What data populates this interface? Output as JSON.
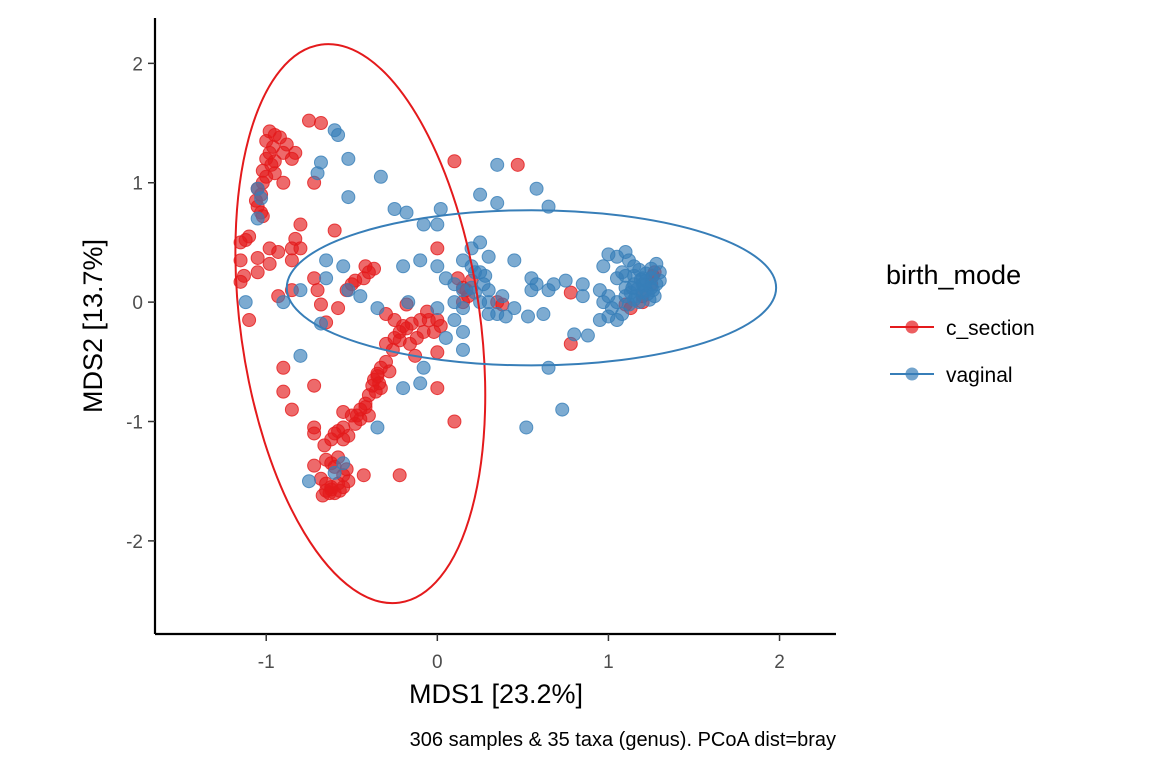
{
  "chart_data": {
    "type": "scatter",
    "xlabel": "MDS1 [23.2%]",
    "ylabel": "MDS2 [13.7%]",
    "caption": "306 samples & 35 taxa (genus). PCoA dist=bray",
    "xlim": [
      -1.65,
      2.33
    ],
    "ylim": [
      -2.78,
      2.38
    ],
    "x_ticks": [
      -1,
      0,
      1,
      2
    ],
    "y_ticks": [
      -2,
      -1,
      0,
      1,
      2
    ],
    "x_tick_labels": [
      "-1",
      "0",
      "1",
      "2"
    ],
    "y_tick_labels": [
      "-2",
      "-1",
      "0",
      "1",
      "2"
    ],
    "grid": false,
    "legend": {
      "title": "birth_mode",
      "placement": "right"
    },
    "series": [
      {
        "name": "c_section",
        "color": "#E41A1C",
        "ellipse": {
          "cx": -0.45,
          "cy": -0.18,
          "rx": 0.7,
          "ry": 2.36,
          "angle_deg": -8
        },
        "points": [
          [
            -0.98,
            1.43
          ],
          [
            -0.95,
            1.4
          ],
          [
            -1.0,
            1.35
          ],
          [
            -0.92,
            1.38
          ],
          [
            -0.96,
            1.3
          ],
          [
            -0.88,
            1.32
          ],
          [
            -0.9,
            1.25
          ],
          [
            -0.98,
            1.25
          ],
          [
            -0.75,
            1.52
          ],
          [
            -0.68,
            1.5
          ],
          [
            -0.83,
            1.25
          ],
          [
            -0.85,
            1.2
          ],
          [
            -1.0,
            1.2
          ],
          [
            -0.97,
            1.15
          ],
          [
            -1.02,
            1.1
          ],
          [
            -0.95,
            1.08
          ],
          [
            -1.0,
            1.05
          ],
          [
            -1.02,
            1.0
          ],
          [
            -0.9,
            1.0
          ],
          [
            -0.72,
            1.0
          ],
          [
            -1.05,
            0.95
          ],
          [
            -1.03,
            0.9
          ],
          [
            -1.05,
            0.8
          ],
          [
            -1.03,
            0.75
          ],
          [
            -1.02,
            0.72
          ],
          [
            -1.1,
            0.55
          ],
          [
            -1.12,
            0.52
          ],
          [
            -1.15,
            0.5
          ],
          [
            -0.98,
            0.45
          ],
          [
            -0.83,
            0.53
          ],
          [
            -0.85,
            0.45
          ],
          [
            -0.8,
            0.45
          ],
          [
            -1.05,
            0.37
          ],
          [
            -0.93,
            0.42
          ],
          [
            -0.85,
            0.35
          ],
          [
            -1.15,
            0.35
          ],
          [
            -0.98,
            0.32
          ],
          [
            -1.05,
            0.25
          ],
          [
            -1.13,
            0.22
          ],
          [
            -1.15,
            0.17
          ],
          [
            -0.72,
            0.2
          ],
          [
            -0.6,
            0.6
          ],
          [
            -0.42,
            0.3
          ],
          [
            -0.4,
            0.25
          ],
          [
            -0.43,
            0.2
          ],
          [
            -0.48,
            0.18
          ],
          [
            -0.5,
            0.15
          ],
          [
            -0.85,
            0.1
          ],
          [
            -0.93,
            0.05
          ],
          [
            -0.7,
            0.1
          ],
          [
            -0.68,
            -0.02
          ],
          [
            -1.1,
            -0.15
          ],
          [
            -0.65,
            -0.17
          ],
          [
            -0.3,
            -0.1
          ],
          [
            -0.25,
            -0.15
          ],
          [
            -0.2,
            -0.2
          ],
          [
            -0.18,
            -0.22
          ],
          [
            -0.22,
            -0.25
          ],
          [
            -0.15,
            -0.18
          ],
          [
            -0.1,
            -0.15
          ],
          [
            -0.05,
            -0.15
          ],
          [
            0.0,
            -0.15
          ],
          [
            0.02,
            -0.2
          ],
          [
            -0.02,
            -0.25
          ],
          [
            -0.08,
            -0.25
          ],
          [
            -0.12,
            -0.3
          ],
          [
            -0.16,
            -0.35
          ],
          [
            -0.25,
            -0.3
          ],
          [
            -0.3,
            -0.35
          ],
          [
            -0.13,
            -0.45
          ],
          [
            -0.3,
            -0.5
          ],
          [
            -0.33,
            -0.55
          ],
          [
            -0.28,
            -0.58
          ],
          [
            -0.35,
            -0.6
          ],
          [
            -0.37,
            -0.65
          ],
          [
            -0.38,
            -0.7
          ],
          [
            -0.33,
            -0.72
          ],
          [
            -0.36,
            -0.75
          ],
          [
            -0.4,
            -0.78
          ],
          [
            -0.42,
            -0.85
          ],
          [
            -0.45,
            -0.9
          ],
          [
            -0.47,
            -0.95
          ],
          [
            -0.5,
            -0.95
          ],
          [
            -0.55,
            -0.92
          ],
          [
            -0.4,
            -0.95
          ],
          [
            -0.45,
            -0.98
          ],
          [
            -0.55,
            -1.05
          ],
          [
            -0.58,
            -1.08
          ],
          [
            -0.52,
            -1.12
          ],
          [
            -0.55,
            -1.15
          ],
          [
            -0.6,
            -1.1
          ],
          [
            -0.62,
            -1.15
          ],
          [
            -0.72,
            -1.05
          ],
          [
            -0.72,
            -1.1
          ],
          [
            -0.85,
            -0.9
          ],
          [
            -0.9,
            -0.75
          ],
          [
            -0.9,
            -0.55
          ],
          [
            -0.72,
            -0.7
          ],
          [
            -0.58,
            -1.3
          ],
          [
            -0.62,
            -1.35
          ],
          [
            -0.65,
            -1.32
          ],
          [
            -0.6,
            -1.38
          ],
          [
            -0.72,
            -1.37
          ],
          [
            -0.68,
            -1.48
          ],
          [
            -0.65,
            -1.52
          ],
          [
            -0.62,
            -1.55
          ],
          [
            -0.58,
            -1.52
          ],
          [
            -0.55,
            -1.55
          ],
          [
            -0.52,
            -1.5
          ],
          [
            -0.57,
            -1.58
          ],
          [
            -0.6,
            -1.6
          ],
          [
            -0.63,
            -1.6
          ],
          [
            -0.65,
            -1.58
          ],
          [
            -0.67,
            -1.62
          ],
          [
            -0.62,
            -1.57
          ],
          [
            -0.55,
            -1.45
          ],
          [
            -0.53,
            -1.4
          ],
          [
            -0.43,
            -1.45
          ],
          [
            -0.22,
            -1.45
          ],
          [
            0.1,
            -1.0
          ],
          [
            0.0,
            -0.72
          ],
          [
            0.0,
            -0.42
          ],
          [
            0.0,
            0.45
          ],
          [
            0.1,
            1.18
          ],
          [
            0.47,
            1.15
          ],
          [
            0.12,
            0.2
          ],
          [
            0.15,
            0.12
          ],
          [
            0.17,
            0.1
          ],
          [
            0.18,
            0.05
          ],
          [
            0.15,
            0.0
          ],
          [
            0.35,
            0.0
          ],
          [
            0.38,
            -0.02
          ],
          [
            0.78,
            0.08
          ],
          [
            0.78,
            -0.35
          ],
          [
            1.1,
            -0.02
          ],
          [
            1.13,
            -0.05
          ],
          [
            1.2,
            0.05
          ],
          [
            1.25,
            0.15
          ],
          [
            1.26,
            0.22
          ],
          [
            1.27,
            0.25
          ],
          [
            1.2,
            0.0
          ],
          [
            -0.18,
            -0.02
          ],
          [
            -0.37,
            0.28
          ],
          [
            -0.58,
            -0.05
          ],
          [
            -0.26,
            -0.4
          ],
          [
            -0.34,
            -0.68
          ],
          [
            -0.95,
            1.18
          ],
          [
            -1.06,
            0.85
          ],
          [
            -0.8,
            0.65
          ],
          [
            -0.53,
            0.1
          ],
          [
            -0.06,
            -0.08
          ],
          [
            0.2,
            0.18
          ],
          [
            -0.66,
            -1.2
          ],
          [
            -0.48,
            -1.02
          ],
          [
            -0.42,
            -0.88
          ],
          [
            -0.35,
            -0.62
          ],
          [
            -0.22,
            -0.32
          ]
        ]
      },
      {
        "name": "vaginal",
        "color": "#377EB8",
        "ellipse": {
          "cx": 0.55,
          "cy": 0.12,
          "rx": 1.43,
          "ry": 0.65,
          "angle_deg": 0
        },
        "points": [
          [
            -0.6,
            1.44
          ],
          [
            -0.58,
            1.4
          ],
          [
            -0.52,
            1.2
          ],
          [
            -0.68,
            1.17
          ],
          [
            -0.7,
            1.08
          ],
          [
            -0.52,
            0.88
          ],
          [
            -0.33,
            1.05
          ],
          [
            -0.25,
            0.78
          ],
          [
            -0.18,
            0.75
          ],
          [
            0.02,
            0.78
          ],
          [
            -0.08,
            0.65
          ],
          [
            0.0,
            0.65
          ],
          [
            0.25,
            0.9
          ],
          [
            0.35,
            0.83
          ],
          [
            0.58,
            0.95
          ],
          [
            0.65,
            0.8
          ],
          [
            0.35,
            1.15
          ],
          [
            -1.05,
            0.95
          ],
          [
            -1.03,
            0.87
          ],
          [
            -1.05,
            0.7
          ],
          [
            -0.65,
            0.35
          ],
          [
            -0.55,
            0.3
          ],
          [
            -0.65,
            0.2
          ],
          [
            -0.52,
            0.1
          ],
          [
            -0.8,
            0.1
          ],
          [
            -0.9,
            0.0
          ],
          [
            -1.12,
            0.0
          ],
          [
            -0.68,
            -0.18
          ],
          [
            -0.8,
            -0.45
          ],
          [
            -0.75,
            -1.5
          ],
          [
            -0.6,
            -1.43
          ],
          [
            -0.55,
            -1.35
          ],
          [
            -0.35,
            -1.05
          ],
          [
            -0.2,
            -0.72
          ],
          [
            -0.1,
            -0.68
          ],
          [
            -0.08,
            -0.55
          ],
          [
            -0.1,
            0.35
          ],
          [
            -0.2,
            0.3
          ],
          [
            0.0,
            0.3
          ],
          [
            0.15,
            0.35
          ],
          [
            0.2,
            0.3
          ],
          [
            0.22,
            0.25
          ],
          [
            0.25,
            0.25
          ],
          [
            0.28,
            0.22
          ],
          [
            0.3,
            0.38
          ],
          [
            0.2,
            0.45
          ],
          [
            0.05,
            0.2
          ],
          [
            0.1,
            0.15
          ],
          [
            0.15,
            0.1
          ],
          [
            0.22,
            0.08
          ],
          [
            0.3,
            0.1
          ],
          [
            0.1,
            0.0
          ],
          [
            0.0,
            -0.05
          ],
          [
            -0.17,
            0.0
          ],
          [
            0.2,
            0.12
          ],
          [
            0.25,
            0.0
          ],
          [
            0.3,
            -0.1
          ],
          [
            0.35,
            -0.1
          ],
          [
            0.4,
            -0.12
          ],
          [
            0.15,
            -0.05
          ],
          [
            0.1,
            -0.15
          ],
          [
            0.15,
            -0.25
          ],
          [
            0.05,
            -0.3
          ],
          [
            0.15,
            -0.4
          ],
          [
            0.3,
            0.0
          ],
          [
            0.45,
            -0.05
          ],
          [
            0.53,
            -0.12
          ],
          [
            0.55,
            0.2
          ],
          [
            0.58,
            0.15
          ],
          [
            0.65,
            0.1
          ],
          [
            0.68,
            0.15
          ],
          [
            0.62,
            -0.1
          ],
          [
            0.75,
            0.18
          ],
          [
            0.85,
            0.15
          ],
          [
            0.85,
            0.05
          ],
          [
            0.65,
            -0.55
          ],
          [
            0.73,
            -0.9
          ],
          [
            0.52,
            -1.05
          ],
          [
            0.25,
            0.5
          ],
          [
            0.45,
            0.35
          ],
          [
            0.97,
            0.3
          ],
          [
            1.0,
            0.4
          ],
          [
            1.05,
            0.38
          ],
          [
            1.1,
            0.42
          ],
          [
            1.12,
            0.35
          ],
          [
            1.15,
            0.3
          ],
          [
            1.08,
            0.25
          ],
          [
            1.05,
            0.2
          ],
          [
            1.1,
            0.22
          ],
          [
            1.15,
            0.22
          ],
          [
            1.18,
            0.27
          ],
          [
            1.2,
            0.2
          ],
          [
            1.22,
            0.24
          ],
          [
            1.25,
            0.28
          ],
          [
            1.28,
            0.32
          ],
          [
            1.3,
            0.25
          ],
          [
            1.25,
            0.2
          ],
          [
            1.2,
            0.15
          ],
          [
            1.15,
            0.15
          ],
          [
            1.1,
            0.12
          ],
          [
            1.13,
            0.08
          ],
          [
            1.16,
            0.05
          ],
          [
            1.2,
            0.08
          ],
          [
            1.22,
            0.1
          ],
          [
            1.25,
            0.12
          ],
          [
            1.28,
            0.15
          ],
          [
            1.3,
            0.18
          ],
          [
            1.27,
            0.05
          ],
          [
            1.24,
            0.02
          ],
          [
            1.18,
            0.0
          ],
          [
            1.15,
            0.02
          ],
          [
            1.12,
            -0.02
          ],
          [
            1.1,
            0.05
          ],
          [
            1.05,
            0.0
          ],
          [
            1.0,
            0.05
          ],
          [
            0.95,
            0.1
          ],
          [
            0.97,
            0.0
          ],
          [
            1.0,
            -0.12
          ],
          [
            0.95,
            -0.15
          ],
          [
            1.05,
            -0.15
          ],
          [
            1.08,
            -0.1
          ],
          [
            1.02,
            -0.05
          ],
          [
            1.22,
            0.18
          ],
          [
            1.26,
            0.1
          ],
          [
            0.8,
            -0.27
          ],
          [
            0.88,
            -0.28
          ],
          [
            1.14,
            0.12
          ],
          [
            1.19,
            0.19
          ],
          [
            1.23,
            0.07
          ],
          [
            1.17,
            0.11
          ],
          [
            1.21,
            0.14
          ],
          [
            0.55,
            0.1
          ],
          [
            0.38,
            0.05
          ],
          [
            0.27,
            0.15
          ],
          [
            -0.45,
            0.05
          ],
          [
            -0.35,
            -0.05
          ]
        ]
      }
    ]
  }
}
